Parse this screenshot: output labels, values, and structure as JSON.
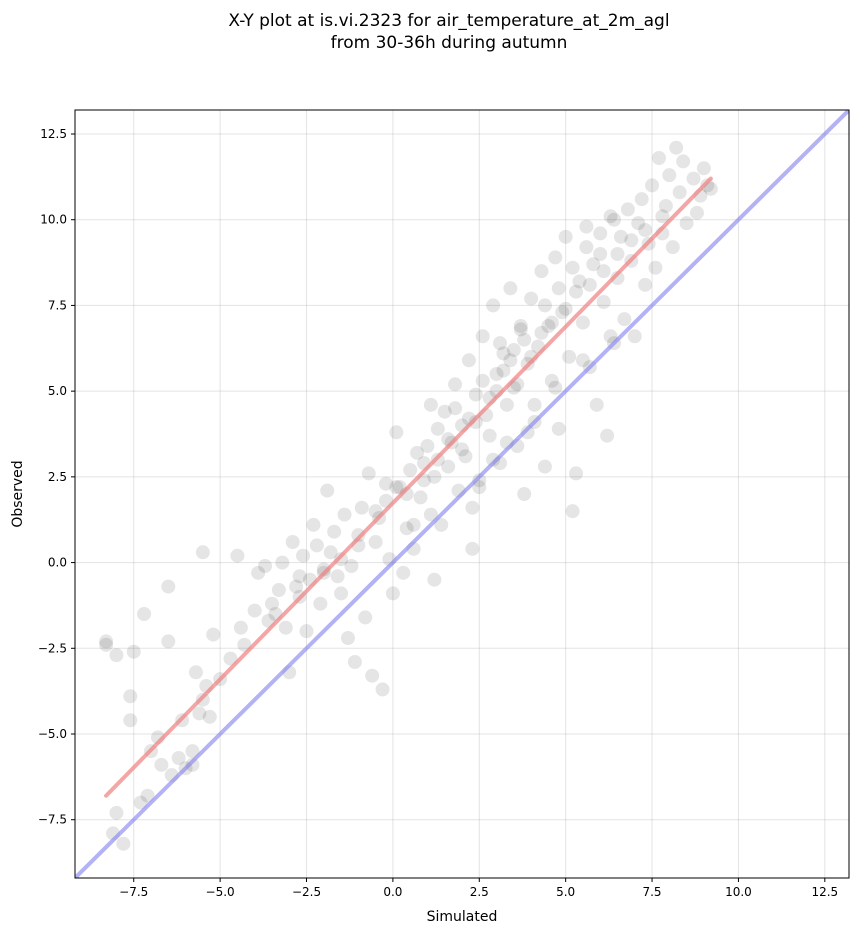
{
  "chart_data": {
    "type": "scatter",
    "title_lines": [
      "X-Y plot at is.vi.2323 for air_temperature_at_2m_agl",
      "from 30-36h during autumn"
    ],
    "xlabel": "Simulated",
    "ylabel": "Observed",
    "xlim": [
      -9.2,
      13.2
    ],
    "ylim": [
      -9.2,
      13.2
    ],
    "xticks": [
      -7.5,
      -5.0,
      -2.5,
      0.0,
      2.5,
      5.0,
      7.5,
      10.0,
      12.5
    ],
    "yticks": [
      -7.5,
      -5.0,
      -2.5,
      0.0,
      2.5,
      5.0,
      7.5,
      10.0,
      12.5
    ],
    "xtick_labels": [
      "−7.5",
      "−5.0",
      "−2.5",
      "0.0",
      "2.5",
      "5.0",
      "7.5",
      "10.0",
      "12.5"
    ],
    "ytick_labels": [
      "−7.5",
      "−5.0",
      "−2.5",
      "0.0",
      "2.5",
      "5.0",
      "7.5",
      "10.0",
      "12.5"
    ],
    "grid": true,
    "point_color": "#000000",
    "point_opacity": 0.1,
    "fit_line": {
      "color": "#f08080",
      "opacity": 0.7,
      "x": [
        -8.3,
        9.2
      ],
      "y": [
        -6.8,
        11.2
      ]
    },
    "identity_line": {
      "color": "#7f7fef",
      "opacity": 0.6,
      "x": [
        -9.2,
        13.2
      ],
      "y": [
        -9.2,
        13.2
      ]
    },
    "points": [
      [
        -8.3,
        -2.3
      ],
      [
        -8.3,
        -2.4
      ],
      [
        -8.0,
        -2.7
      ],
      [
        -7.8,
        -8.2
      ],
      [
        -8.0,
        -7.3
      ],
      [
        -8.1,
        -7.9
      ],
      [
        -7.6,
        -3.9
      ],
      [
        -7.6,
        -4.6
      ],
      [
        -7.5,
        -2.6
      ],
      [
        -7.3,
        -7.0
      ],
      [
        -7.2,
        -1.5
      ],
      [
        -7.1,
        -6.8
      ],
      [
        -7.0,
        -5.5
      ],
      [
        -6.8,
        -5.1
      ],
      [
        -6.7,
        -5.9
      ],
      [
        -6.5,
        -0.7
      ],
      [
        -6.5,
        -2.3
      ],
      [
        -6.4,
        -6.2
      ],
      [
        -6.2,
        -5.7
      ],
      [
        -6.1,
        -4.6
      ],
      [
        -6.0,
        -6.0
      ],
      [
        -5.8,
        -5.5
      ],
      [
        -5.8,
        -5.9
      ],
      [
        -5.7,
        -3.2
      ],
      [
        -5.6,
        -4.4
      ],
      [
        -5.5,
        0.3
      ],
      [
        -5.5,
        -4.0
      ],
      [
        -5.4,
        -3.6
      ],
      [
        -5.3,
        -4.5
      ],
      [
        -5.2,
        -2.1
      ],
      [
        -5.0,
        -3.4
      ],
      [
        -4.7,
        -2.8
      ],
      [
        -4.5,
        0.2
      ],
      [
        -4.4,
        -1.9
      ],
      [
        -4.3,
        -2.4
      ],
      [
        -4.0,
        -1.4
      ],
      [
        -3.9,
        -0.3
      ],
      [
        -3.7,
        -0.1
      ],
      [
        -3.6,
        -1.7
      ],
      [
        -3.5,
        -1.2
      ],
      [
        -3.3,
        -0.8
      ],
      [
        -3.2,
        0.0
      ],
      [
        -3.1,
        -1.9
      ],
      [
        -3.0,
        -3.2
      ],
      [
        -2.9,
        0.6
      ],
      [
        -2.8,
        -0.7
      ],
      [
        -2.7,
        -0.4
      ],
      [
        -2.6,
        0.2
      ],
      [
        -2.5,
        -2.0
      ],
      [
        -2.4,
        -0.5
      ],
      [
        -2.3,
        1.1
      ],
      [
        -2.2,
        0.5
      ],
      [
        -2.1,
        -1.2
      ],
      [
        -2.0,
        -0.2
      ],
      [
        -1.9,
        2.1
      ],
      [
        -1.8,
        0.3
      ],
      [
        -1.7,
        0.9
      ],
      [
        -1.6,
        -0.4
      ],
      [
        -1.5,
        -0.9
      ],
      [
        -1.4,
        1.4
      ],
      [
        -1.3,
        -2.2
      ],
      [
        -1.2,
        -0.1
      ],
      [
        -1.1,
        -2.9
      ],
      [
        -1.0,
        0.8
      ],
      [
        -0.9,
        1.6
      ],
      [
        -0.8,
        -1.6
      ],
      [
        -0.7,
        2.6
      ],
      [
        -0.6,
        -3.3
      ],
      [
        -0.5,
        0.6
      ],
      [
        -0.4,
        1.3
      ],
      [
        -0.3,
        -3.7
      ],
      [
        -0.2,
        2.3
      ],
      [
        -0.1,
        0.1
      ],
      [
        0.0,
        -0.9
      ],
      [
        0.1,
        3.8
      ],
      [
        0.2,
        2.2
      ],
      [
        0.3,
        -0.3
      ],
      [
        0.4,
        1.0
      ],
      [
        0.5,
        2.7
      ],
      [
        0.6,
        0.4
      ],
      [
        0.7,
        3.2
      ],
      [
        0.8,
        1.9
      ],
      [
        0.9,
        2.9
      ],
      [
        1.0,
        3.4
      ],
      [
        1.1,
        4.6
      ],
      [
        1.2,
        2.5
      ],
      [
        1.3,
        3.9
      ],
      [
        1.4,
        1.1
      ],
      [
        1.5,
        4.4
      ],
      [
        1.6,
        2.8
      ],
      [
        1.7,
        3.5
      ],
      [
        1.8,
        5.2
      ],
      [
        1.9,
        2.1
      ],
      [
        2.0,
        4.0
      ],
      [
        2.1,
        3.1
      ],
      [
        2.2,
        5.9
      ],
      [
        2.3,
        1.6
      ],
      [
        2.4,
        4.9
      ],
      [
        2.5,
        2.4
      ],
      [
        2.6,
        6.6
      ],
      [
        2.7,
        4.3
      ],
      [
        2.8,
        3.7
      ],
      [
        2.9,
        7.5
      ],
      [
        3.0,
        5.5
      ],
      [
        3.1,
        2.9
      ],
      [
        3.2,
        6.1
      ],
      [
        3.3,
        4.6
      ],
      [
        3.4,
        8.0
      ],
      [
        3.5,
        5.1
      ],
      [
        3.6,
        3.4
      ],
      [
        3.7,
        6.8
      ],
      [
        3.8,
        2.0
      ],
      [
        3.9,
        5.8
      ],
      [
        4.0,
        7.7
      ],
      [
        4.1,
        4.1
      ],
      [
        4.2,
        6.3
      ],
      [
        4.3,
        8.5
      ],
      [
        4.4,
        2.8
      ],
      [
        4.5,
        6.9
      ],
      [
        4.6,
        5.3
      ],
      [
        4.7,
        8.9
      ],
      [
        4.8,
        3.9
      ],
      [
        4.9,
        7.3
      ],
      [
        5.0,
        9.5
      ],
      [
        5.1,
        6.0
      ],
      [
        5.2,
        1.5
      ],
      [
        5.3,
        2.6
      ],
      [
        5.4,
        8.2
      ],
      [
        5.5,
        7.0
      ],
      [
        5.6,
        9.8
      ],
      [
        5.7,
        5.7
      ],
      [
        5.8,
        8.7
      ],
      [
        5.9,
        4.6
      ],
      [
        6.0,
        9.0
      ],
      [
        6.1,
        7.6
      ],
      [
        6.2,
        3.7
      ],
      [
        6.3,
        10.1
      ],
      [
        6.4,
        6.4
      ],
      [
        6.5,
        8.3
      ],
      [
        6.6,
        9.5
      ],
      [
        6.7,
        7.1
      ],
      [
        6.8,
        10.3
      ],
      [
        6.9,
        8.8
      ],
      [
        7.0,
        6.6
      ],
      [
        7.1,
        9.9
      ],
      [
        7.2,
        10.6
      ],
      [
        7.3,
        8.1
      ],
      [
        7.4,
        9.3
      ],
      [
        7.5,
        11.0
      ],
      [
        7.6,
        8.6
      ],
      [
        7.7,
        11.8
      ],
      [
        7.8,
        9.6
      ],
      [
        7.9,
        10.4
      ],
      [
        8.0,
        11.3
      ],
      [
        8.1,
        9.2
      ],
      [
        8.2,
        12.1
      ],
      [
        8.3,
        10.8
      ],
      [
        8.4,
        11.7
      ],
      [
        8.5,
        9.9
      ],
      [
        8.7,
        11.2
      ],
      [
        8.8,
        10.2
      ],
      [
        8.9,
        10.7
      ],
      [
        9.0,
        11.5
      ],
      [
        9.1,
        11.0
      ],
      [
        9.2,
        10.9
      ],
      [
        0.4,
        2.0
      ],
      [
        0.9,
        2.4
      ],
      [
        1.3,
        3.0
      ],
      [
        1.6,
        3.6
      ],
      [
        2.0,
        3.3
      ],
      [
        2.4,
        4.1
      ],
      [
        2.8,
        4.8
      ],
      [
        3.0,
        5.0
      ],
      [
        3.2,
        5.6
      ],
      [
        3.4,
        5.9
      ],
      [
        3.5,
        6.2
      ],
      [
        3.6,
        5.2
      ],
      [
        3.8,
        6.5
      ],
      [
        4.0,
        6.0
      ],
      [
        4.3,
        6.7
      ],
      [
        4.6,
        7.0
      ],
      [
        5.0,
        7.4
      ],
      [
        5.3,
        7.9
      ],
      [
        5.7,
        8.1
      ],
      [
        6.1,
        8.5
      ],
      [
        6.5,
        9.0
      ],
      [
        6.9,
        9.4
      ],
      [
        7.3,
        9.7
      ],
      [
        7.8,
        10.1
      ],
      [
        -0.5,
        1.5
      ],
      [
        -0.2,
        1.8
      ],
      [
        0.1,
        2.2
      ],
      [
        -1.0,
        0.5
      ],
      [
        -1.5,
        0.1
      ],
      [
        -2.0,
        -0.3
      ],
      [
        -2.7,
        -1.0
      ],
      [
        -3.4,
        -1.5
      ],
      [
        1.8,
        4.5
      ],
      [
        2.2,
        4.2
      ],
      [
        2.6,
        5.3
      ],
      [
        3.1,
        6.4
      ],
      [
        3.7,
        6.9
      ],
      [
        4.4,
        7.5
      ],
      [
        4.8,
        8.0
      ],
      [
        5.2,
        8.6
      ],
      [
        5.6,
        9.2
      ],
      [
        6.0,
        9.6
      ],
      [
        6.4,
        10.0
      ],
      [
        2.9,
        3.0
      ],
      [
        3.3,
        3.5
      ],
      [
        1.1,
        1.4
      ],
      [
        0.6,
        1.1
      ],
      [
        2.5,
        2.2
      ],
      [
        4.1,
        4.6
      ],
      [
        4.7,
        5.1
      ],
      [
        5.5,
        5.9
      ],
      [
        6.3,
        6.6
      ],
      [
        3.9,
        3.8
      ],
      [
        2.3,
        0.4
      ],
      [
        1.2,
        -0.5
      ]
    ]
  }
}
